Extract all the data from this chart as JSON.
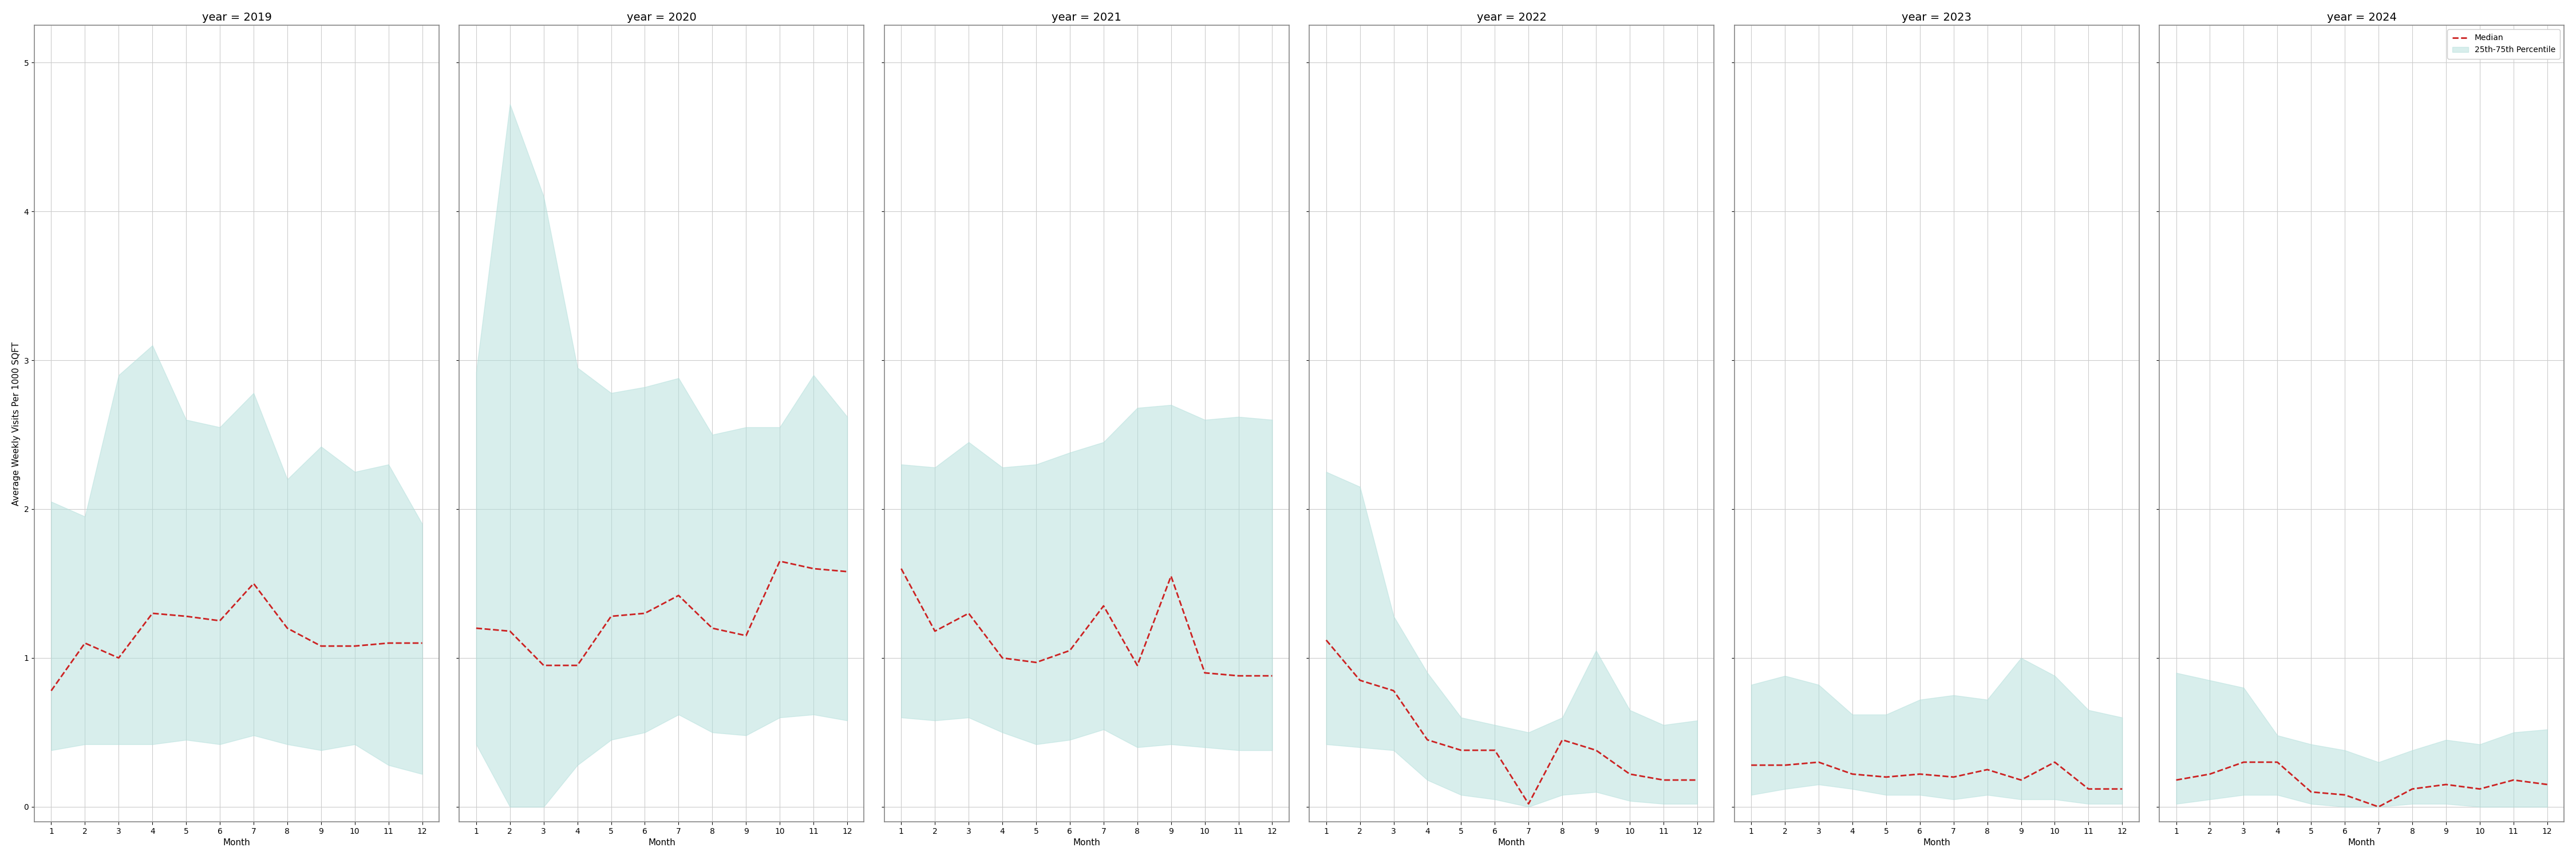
{
  "years": [
    2019,
    2020,
    2021,
    2022,
    2023,
    2024
  ],
  "months": [
    1,
    2,
    3,
    4,
    5,
    6,
    7,
    8,
    9,
    10,
    11,
    12
  ],
  "median": {
    "2019": [
      0.78,
      1.1,
      1.0,
      1.3,
      1.28,
      1.25,
      1.5,
      1.2,
      1.08,
      1.08,
      1.1,
      1.1
    ],
    "2020": [
      1.2,
      1.18,
      0.95,
      0.95,
      1.28,
      1.3,
      1.42,
      1.2,
      1.15,
      1.65,
      1.6,
      1.58
    ],
    "2021": [
      1.6,
      1.18,
      1.3,
      1.0,
      0.97,
      1.05,
      1.35,
      0.95,
      1.55,
      0.9,
      0.88,
      0.88
    ],
    "2022": [
      1.12,
      0.85,
      0.78,
      0.45,
      0.38,
      0.38,
      0.02,
      0.45,
      0.38,
      0.22,
      0.18,
      0.18
    ],
    "2023": [
      0.28,
      0.28,
      0.3,
      0.22,
      0.2,
      0.22,
      0.2,
      0.25,
      0.18,
      0.3,
      0.12,
      0.12
    ],
    "2024": [
      0.18,
      0.22,
      0.3,
      0.3,
      0.1,
      0.08,
      0.0,
      0.12,
      0.15,
      0.12,
      0.18,
      0.15
    ]
  },
  "q25": {
    "2019": [
      0.38,
      0.42,
      0.42,
      0.42,
      0.45,
      0.42,
      0.48,
      0.42,
      0.38,
      0.42,
      0.28,
      0.22
    ],
    "2020": [
      0.42,
      0.0,
      0.0,
      0.28,
      0.45,
      0.5,
      0.62,
      0.5,
      0.48,
      0.6,
      0.62,
      0.58
    ],
    "2021": [
      0.6,
      0.58,
      0.6,
      0.5,
      0.42,
      0.45,
      0.52,
      0.4,
      0.42,
      0.4,
      0.38,
      0.38
    ],
    "2022": [
      0.42,
      0.4,
      0.38,
      0.18,
      0.08,
      0.05,
      0.0,
      0.08,
      0.1,
      0.04,
      0.02,
      0.02
    ],
    "2023": [
      0.08,
      0.12,
      0.15,
      0.12,
      0.08,
      0.08,
      0.05,
      0.08,
      0.05,
      0.05,
      0.02,
      0.02
    ],
    "2024": [
      0.02,
      0.05,
      0.08,
      0.08,
      0.02,
      0.0,
      0.0,
      0.02,
      0.02,
      0.0,
      0.0,
      0.0
    ]
  },
  "q75": {
    "2019": [
      2.05,
      1.95,
      2.9,
      3.1,
      2.6,
      2.55,
      2.78,
      2.2,
      2.42,
      2.25,
      2.3,
      1.9
    ],
    "2020": [
      2.92,
      4.72,
      4.1,
      2.95,
      2.78,
      2.82,
      2.88,
      2.5,
      2.55,
      2.55,
      2.9,
      2.62
    ],
    "2021": [
      2.3,
      2.28,
      2.45,
      2.28,
      2.3,
      2.38,
      2.45,
      2.68,
      2.7,
      2.6,
      2.62,
      2.6
    ],
    "2022": [
      2.25,
      2.15,
      1.28,
      0.9,
      0.6,
      0.55,
      0.5,
      0.6,
      1.05,
      0.65,
      0.55,
      0.58
    ],
    "2023": [
      0.82,
      0.88,
      0.82,
      0.62,
      0.62,
      0.72,
      0.75,
      0.72,
      1.0,
      0.88,
      0.65,
      0.6
    ],
    "2024": [
      0.9,
      0.85,
      0.8,
      0.48,
      0.42,
      0.38,
      0.3,
      0.38,
      0.45,
      0.42,
      0.5,
      0.52
    ]
  },
  "fill_color": "#b2dfdb",
  "fill_alpha": 0.5,
  "line_color": "#cc2222",
  "line_style": "--",
  "line_width": 2.0,
  "ylabel": "Average Weekly Visits Per 1000 SQFT",
  "xlabel": "Month",
  "ylim": [
    -0.1,
    5.25
  ],
  "yticks": [
    0,
    1,
    2,
    3,
    4,
    5
  ],
  "legend_median": "Median",
  "legend_fill": "25th-75th Percentile",
  "bg_color": "#ffffff",
  "grid_color": "#cccccc",
  "spine_color": "#888888",
  "title_fontsize": 14,
  "label_fontsize": 11,
  "tick_fontsize": 10
}
